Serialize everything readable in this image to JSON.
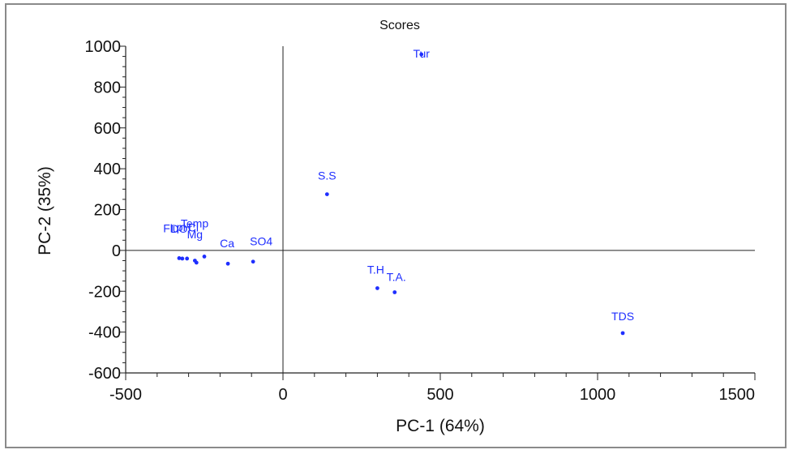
{
  "chart_data": {
    "type": "scatter",
    "title": "Scores",
    "xlabel": "PC-1 (64%)",
    "ylabel": "PC-2 (35%)",
    "xlim": [
      -500,
      1500
    ],
    "ylim": [
      -600,
      1000
    ],
    "xticks": [
      -500,
      0,
      500,
      1000,
      1500
    ],
    "yticks": [
      -600,
      -400,
      -200,
      0,
      200,
      400,
      600,
      800,
      1000
    ],
    "grid": false,
    "legend": "none",
    "zero_lines": true,
    "point_color": "#1f2fff",
    "points": [
      {
        "label": "Tur",
        "x": 440,
        "y": 960
      },
      {
        "label": "S.S",
        "x": 140,
        "y": 275
      },
      {
        "label": "T.H",
        "x": 300,
        "y": -185
      },
      {
        "label": "T.A.",
        "x": 355,
        "y": -205
      },
      {
        "label": "TDS",
        "x": 1080,
        "y": -405
      },
      {
        "label": "SO4",
        "x": -95,
        "y": -55
      },
      {
        "label": "Ca",
        "x": -175,
        "y": -65
      },
      {
        "label": "Temp",
        "x": -250,
        "y": -30
      },
      {
        "label": "Mg",
        "x": -275,
        "y": -60
      },
      {
        "label": "Cl",
        "x": -280,
        "y": -50
      },
      {
        "label": "pH",
        "x": -305,
        "y": -40
      },
      {
        "label": "DO",
        "x": -320,
        "y": -40
      },
      {
        "label": "Fluoride",
        "x": -330,
        "y": -38
      }
    ],
    "labels_visible": [
      "Tur",
      "S.S",
      "T.H",
      "T.A.",
      "TDS",
      "SO4",
      "Ca",
      "Temp",
      "Flu"
    ]
  }
}
